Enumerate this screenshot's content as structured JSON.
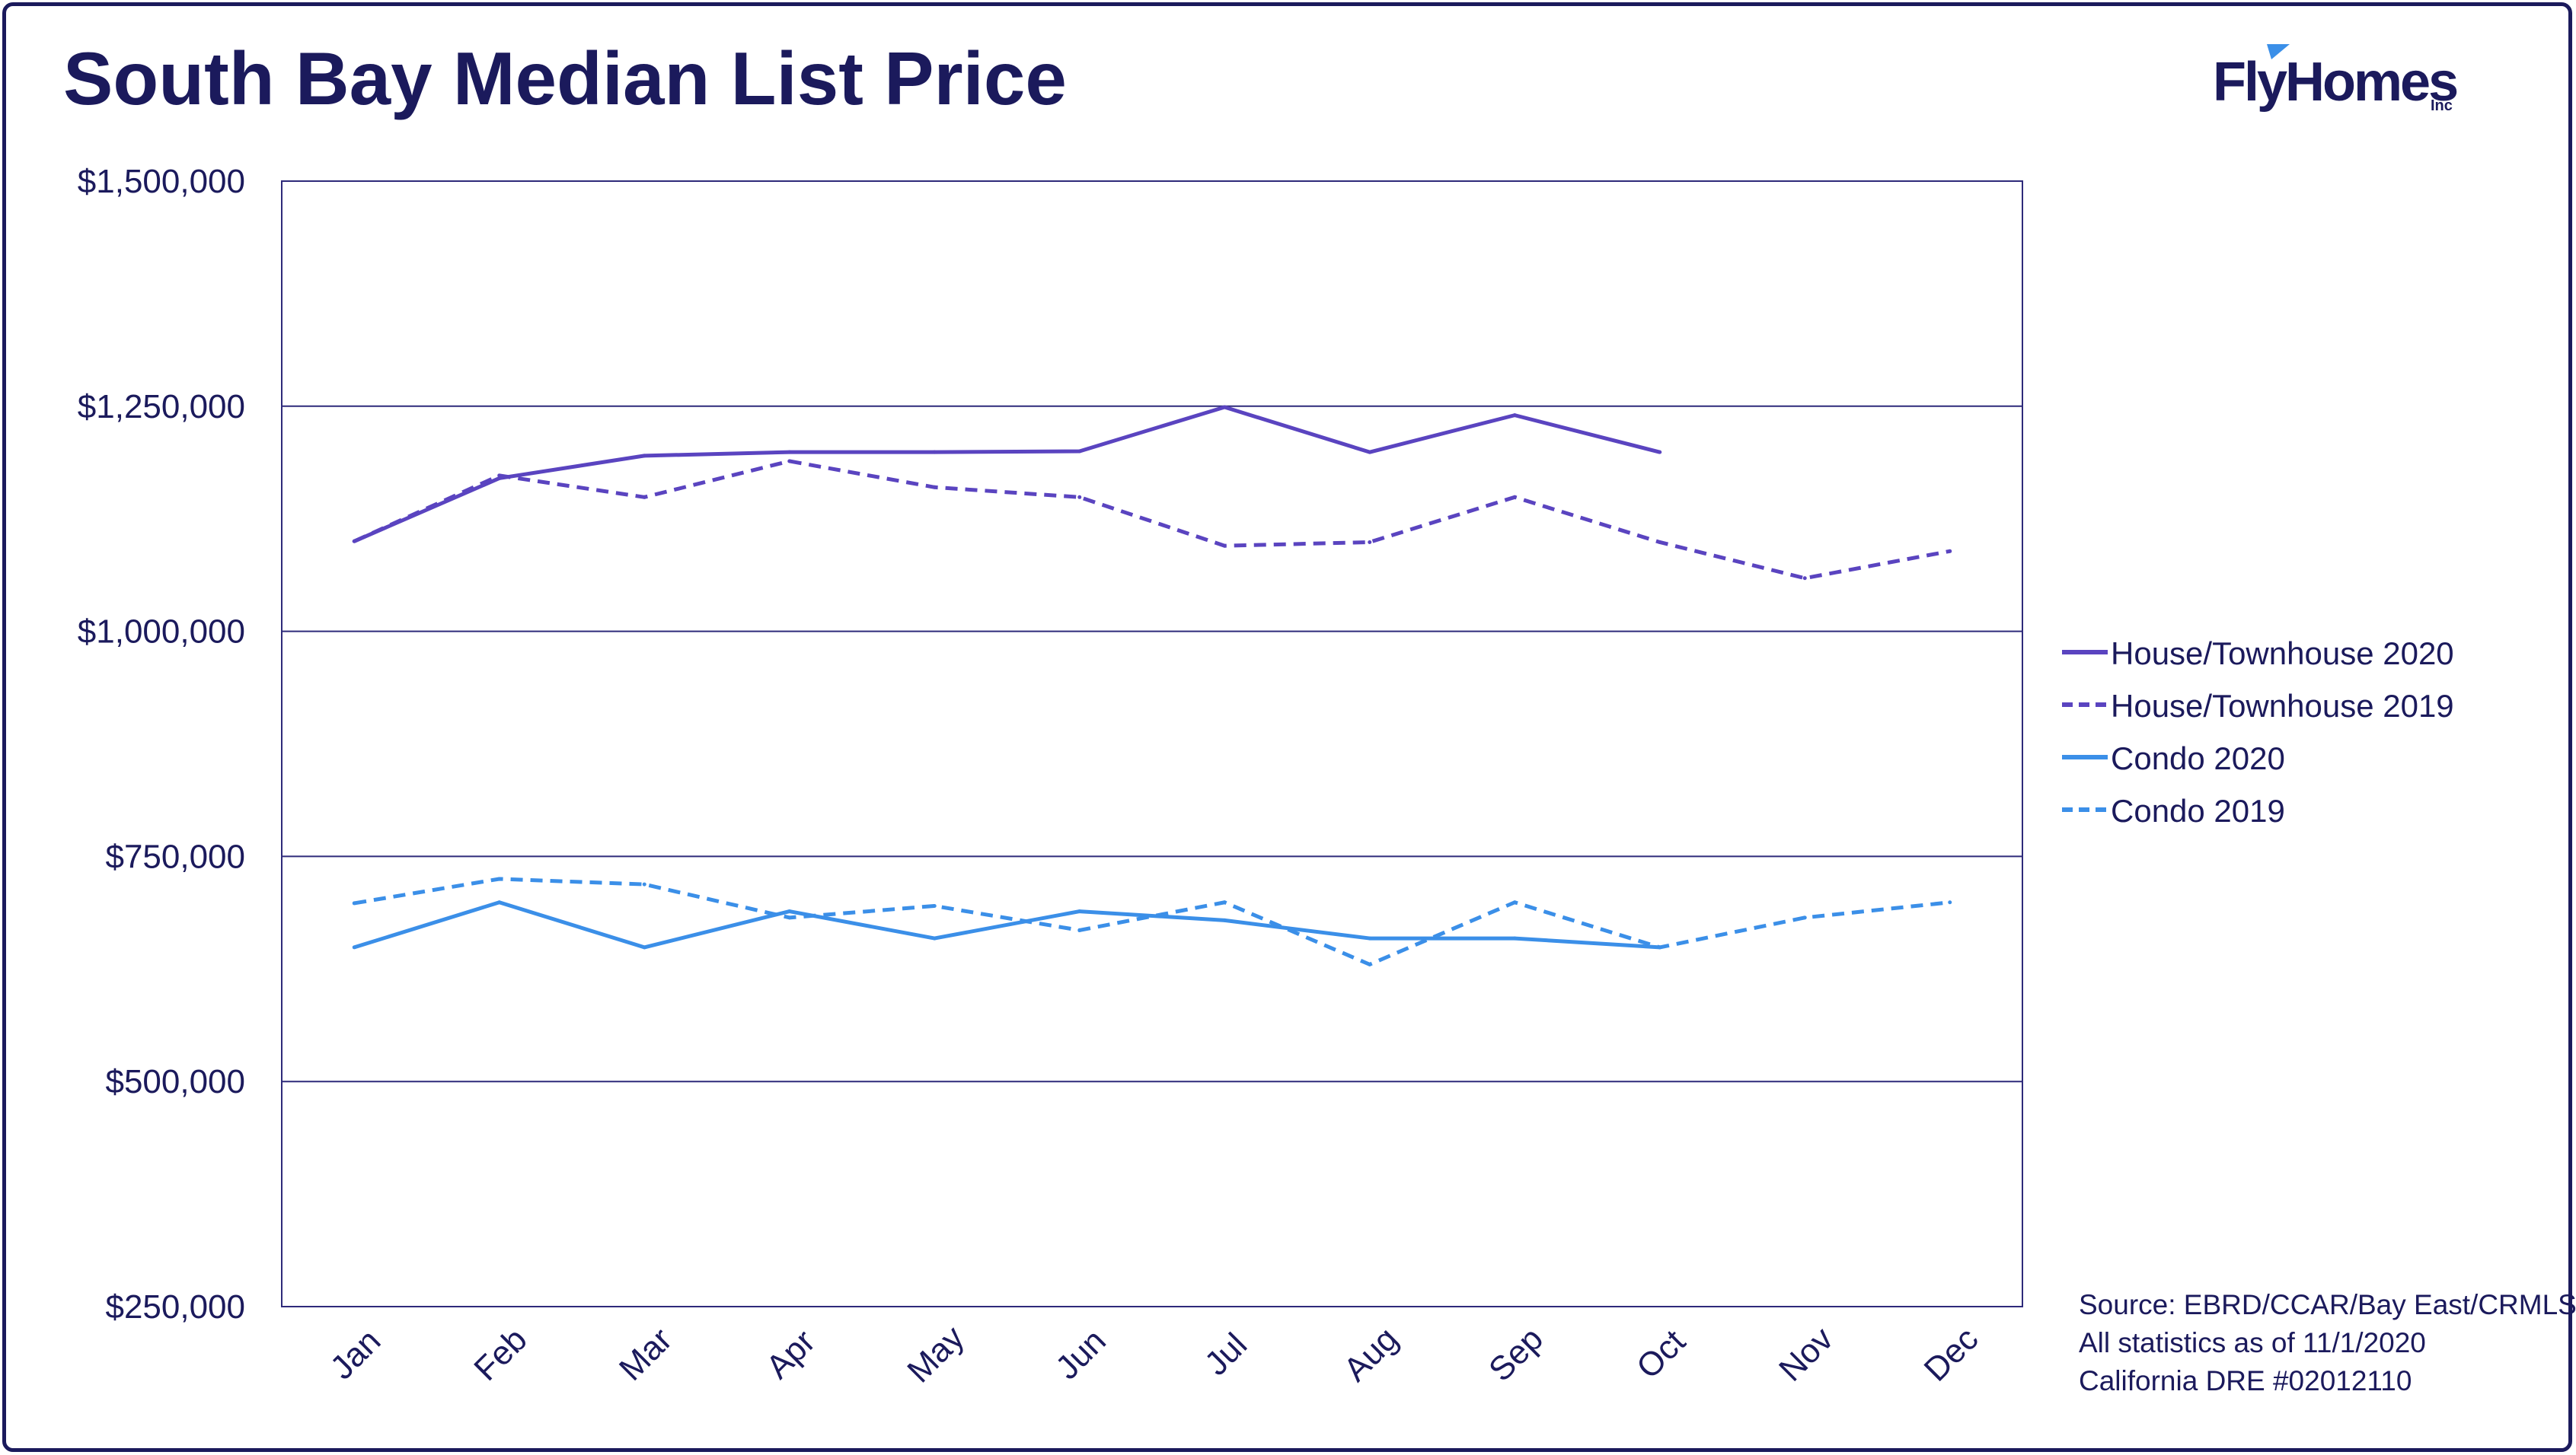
{
  "title": "South Bay Median List Price",
  "logo": {
    "word": "FlyHomes",
    "suffix": "Inc",
    "accent_color": "#3b8fe8",
    "color": "#1b1a5c"
  },
  "source_lines": [
    "Source: EBRD/CCAR/Bay East/CRMLS",
    "All statistics as of 11/1/2020",
    "California DRE #02012110"
  ],
  "colors": {
    "frame": "#1b1a5c",
    "text": "#1b1a5c",
    "grid": "#2e2a7a",
    "purple": "#5a44c0",
    "blue": "#3b8fe8"
  },
  "chart_data": {
    "type": "line",
    "title": "South Bay Median List Price",
    "categories": [
      "Jan",
      "Feb",
      "Mar",
      "Apr",
      "May",
      "Jun",
      "Jul",
      "Aug",
      "Sep",
      "Oct",
      "Nov",
      "Dec"
    ],
    "ylim": [
      250000,
      1500000
    ],
    "yticks": [
      250000,
      500000,
      750000,
      1000000,
      1250000,
      1500000
    ],
    "ytick_labels": [
      "$250,000",
      "$500,000",
      "$750,000",
      "$1,000,000",
      "$1,250,000",
      "$1,500,000"
    ],
    "grid": "horizontal",
    "legend_position": "right",
    "series": [
      {
        "name": "House/Townhouse 2020",
        "color": "#5a44c0",
        "dashed": false,
        "values": [
          1100000,
          1170000,
          1195000,
          1199000,
          1199000,
          1200000,
          1249000,
          1199000,
          1240000,
          1199000,
          null,
          null
        ]
      },
      {
        "name": "House/Townhouse 2019",
        "color": "#5a44c0",
        "dashed": true,
        "values": [
          1100000,
          1173000,
          1149000,
          1189000,
          1160000,
          1149000,
          1095000,
          1099000,
          1149000,
          1099000,
          1059000,
          1089000
        ]
      },
      {
        "name": "Condo 2020",
        "color": "#3b8fe8",
        "dashed": false,
        "values": [
          649000,
          699000,
          649000,
          689000,
          659000,
          689000,
          679000,
          659000,
          659000,
          649000,
          null,
          null
        ]
      },
      {
        "name": "Condo 2019",
        "color": "#3b8fe8",
        "dashed": true,
        "values": [
          698000,
          725000,
          719000,
          682000,
          695000,
          668000,
          699000,
          630000,
          699000,
          649000,
          682000,
          699000
        ]
      }
    ]
  }
}
